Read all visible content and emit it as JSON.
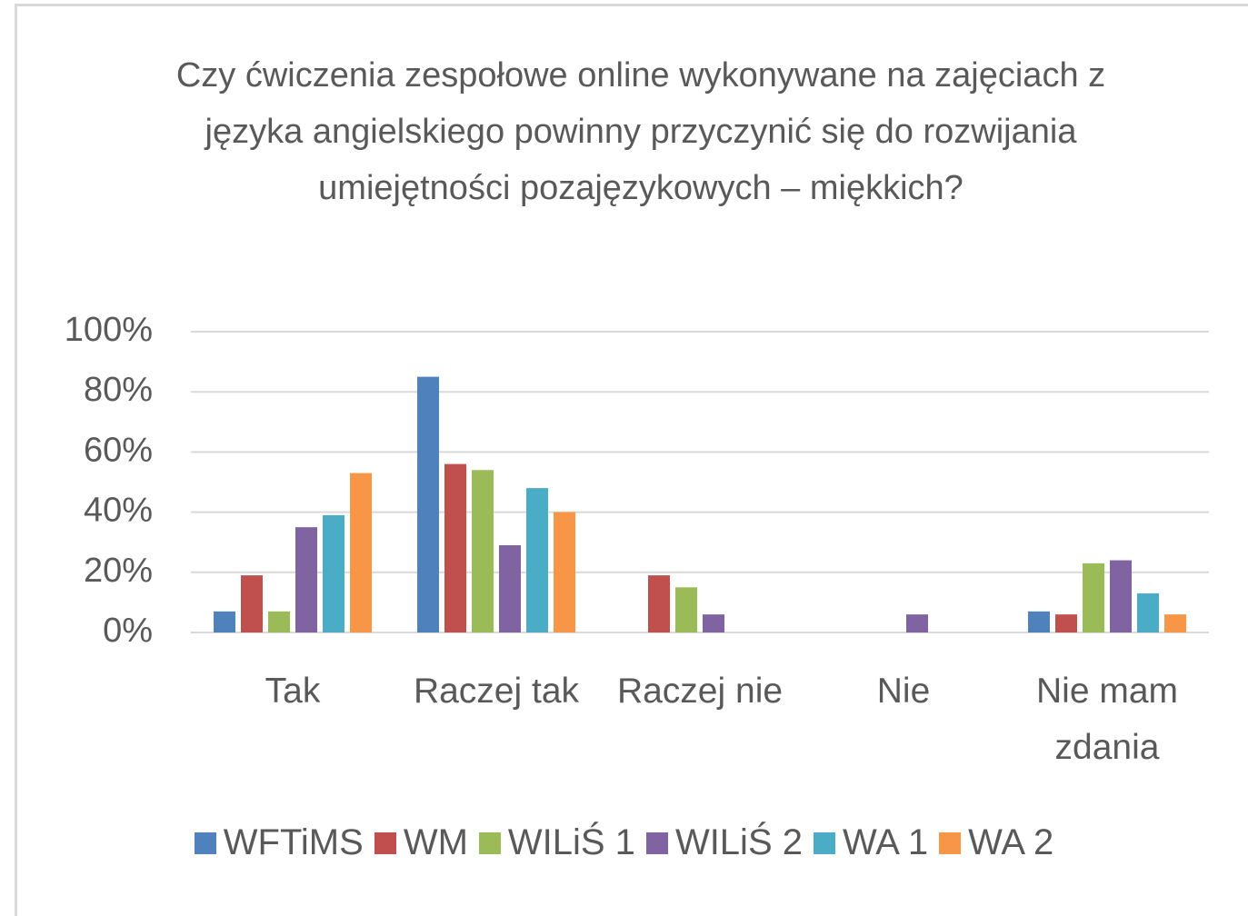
{
  "chart_data": {
    "type": "bar",
    "title": "Czy ćwiczenia zespołowe online wykonywane na zajęciach z języka angielskiego powinny przyczynić się do rozwijania umiejętności pozajęzykowych – miękkich?",
    "categories": [
      "Tak",
      "Raczej tak",
      "Raczej nie",
      "Nie",
      "Nie mam zdania"
    ],
    "series": [
      {
        "name": "WFTiMS",
        "color": "#4f81bd",
        "values": [
          7,
          85,
          0,
          0,
          7
        ]
      },
      {
        "name": "WM",
        "color": "#c0504d",
        "values": [
          19,
          56,
          19,
          0,
          6
        ]
      },
      {
        "name": "WILiŚ 1",
        "color": "#9bbb59",
        "values": [
          7,
          54,
          15,
          0,
          23
        ]
      },
      {
        "name": "WILiŚ 2",
        "color": "#8064a2",
        "values": [
          35,
          29,
          6,
          6,
          24
        ]
      },
      {
        "name": "WA 1",
        "color": "#4bacc6",
        "values": [
          39,
          48,
          0,
          0,
          13
        ]
      },
      {
        "name": "WA 2",
        "color": "#f79646",
        "values": [
          53,
          40,
          0,
          0,
          6
        ]
      }
    ],
    "ylim": [
      0,
      100
    ],
    "yticks": [
      {
        "value": 0,
        "label": "0%"
      },
      {
        "value": 20,
        "label": "20%"
      },
      {
        "value": 40,
        "label": "40%"
      },
      {
        "value": 60,
        "label": "60%"
      },
      {
        "value": 80,
        "label": "80%"
      },
      {
        "value": 100,
        "label": "100%"
      }
    ],
    "grid": true,
    "legend": "bottom"
  }
}
